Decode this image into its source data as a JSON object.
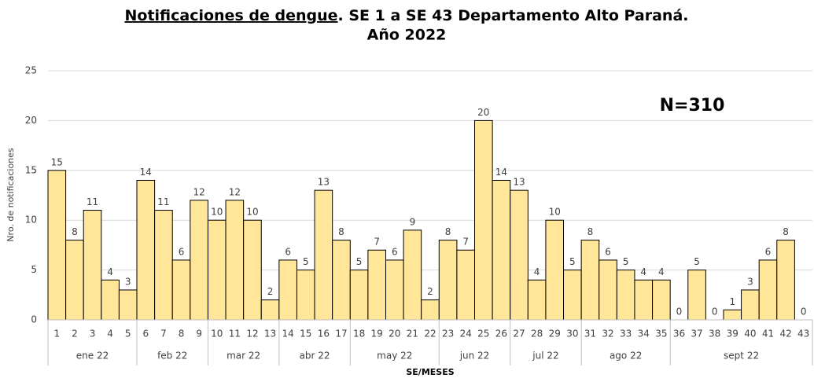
{
  "chart_data": {
    "type": "bar",
    "title": [
      "Notificaciones de dengue",
      ". SE 1 a SE 43 Departamento Alto Paraná.",
      "Año 2022"
    ],
    "annotation": "N=310",
    "y_label": "Nro. de notificaciones",
    "x_label": "SE/MESES",
    "categories": [
      "1",
      "2",
      "3",
      "4",
      "5",
      "6",
      "7",
      "8",
      "9",
      "10",
      "11",
      "12",
      "13",
      "14",
      "15",
      "16",
      "17",
      "18",
      "19",
      "20",
      "21",
      "22",
      "23",
      "24",
      "25",
      "26",
      "27",
      "28",
      "29",
      "30",
      "31",
      "32",
      "33",
      "34",
      "35",
      "36",
      "37",
      "38",
      "39",
      "40",
      "41",
      "42",
      "43"
    ],
    "values": [
      15,
      8,
      11,
      4,
      3,
      14,
      11,
      6,
      12,
      10,
      12,
      10,
      2,
      6,
      5,
      13,
      8,
      5,
      7,
      6,
      9,
      2,
      8,
      7,
      20,
      14,
      13,
      4,
      10,
      5,
      8,
      6,
      5,
      4,
      4,
      0,
      5,
      0,
      1,
      3,
      6,
      8,
      0
    ],
    "groups": [
      {
        "label": "ene 22",
        "count": 5
      },
      {
        "label": "feb 22",
        "count": 4
      },
      {
        "label": "mar 22",
        "count": 4
      },
      {
        "label": "abr 22",
        "count": 4
      },
      {
        "label": "may 22",
        "count": 5
      },
      {
        "label": "jun 22",
        "count": 4
      },
      {
        "label": "jul 22",
        "count": 4
      },
      {
        "label": "ago 22",
        "count": 5
      },
      {
        "label": "sept 22",
        "count": 8
      }
    ],
    "color": "#ffe699",
    "ylim": [
      0,
      25
    ],
    "yticks": [
      0,
      5,
      10,
      15,
      20,
      25
    ],
    "grid": true
  }
}
